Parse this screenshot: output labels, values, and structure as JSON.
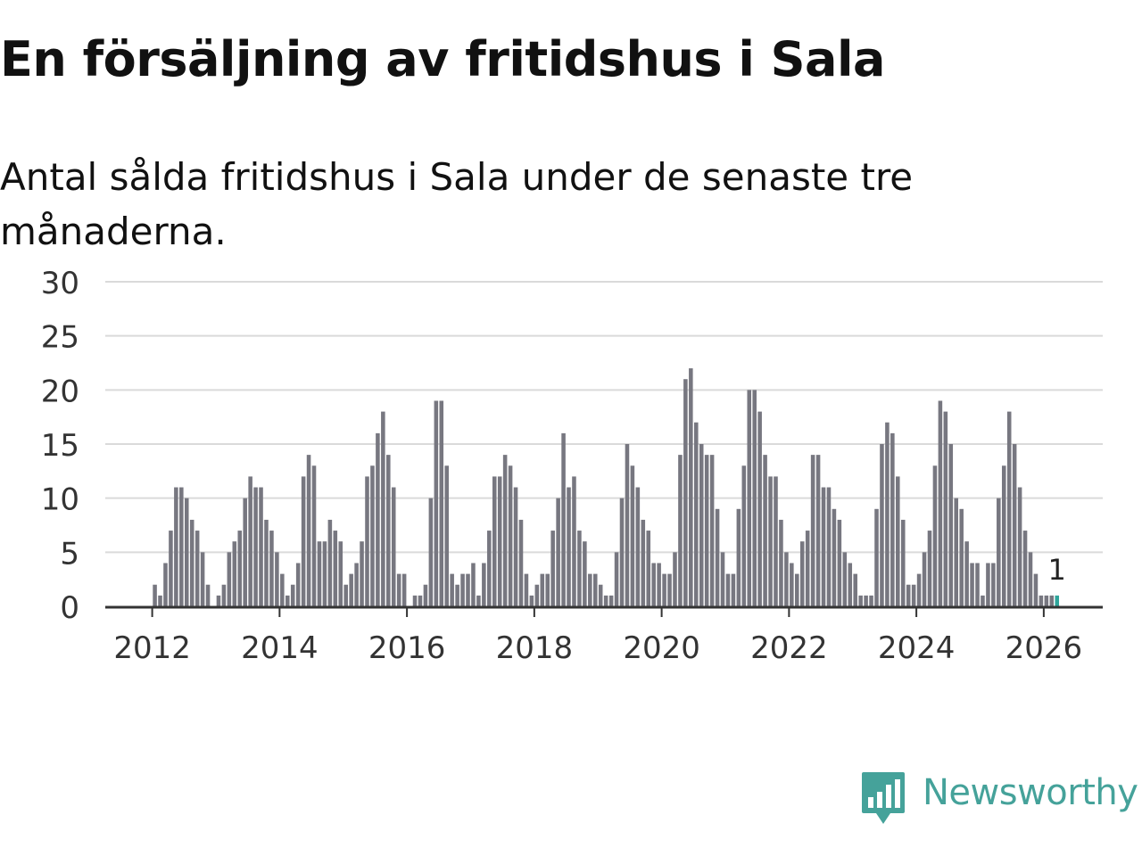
{
  "title": "En försäljning av fritidshus i Sala",
  "subtitle": "Antal sålda fritidshus i Sala under de senaste tre månaderna.",
  "brand": {
    "name": "Newsworthy",
    "icon": "bar-chart-speech-bubble-icon",
    "color": "#45a29a"
  },
  "chart_data": {
    "type": "bar",
    "title": "En försäljning av fritidshus i Sala",
    "subtitle": "Antal sålda fritidshus i Sala under de senaste tre månaderna.",
    "frequency": "monthly",
    "start": "2011-01",
    "end": "2026-03",
    "ylim": [
      0,
      30
    ],
    "y_ticks": [
      "0",
      "5",
      "10",
      "15",
      "20",
      "25",
      "30"
    ],
    "x_ticks": [
      "2012",
      "2014",
      "2016",
      "2018",
      "2020",
      "2022",
      "2024",
      "2026"
    ],
    "grid": true,
    "bar_color": "#777780",
    "highlight_color": "#2fa59b",
    "highlight_label": "1",
    "series": [
      {
        "values": [
          0,
          0,
          0,
          0,
          0,
          0,
          0,
          0,
          0,
          0,
          0,
          0,
          2,
          1,
          4,
          7,
          11,
          11,
          10,
          8,
          7,
          5,
          2,
          0,
          1,
          2,
          5,
          6,
          7,
          10,
          12,
          11,
          11,
          8,
          7,
          5,
          3,
          1,
          2,
          4,
          12,
          14,
          13,
          6,
          6,
          8,
          7,
          6,
          2,
          3,
          4,
          6,
          12,
          13,
          16,
          18,
          14,
          11,
          3,
          3,
          0,
          1,
          1,
          2,
          10,
          19,
          19,
          13,
          3,
          2,
          3,
          3,
          4,
          1,
          4,
          7,
          12,
          12,
          14,
          13,
          11,
          8,
          3,
          1,
          2,
          3,
          3,
          7,
          10,
          16,
          11,
          12,
          7,
          6,
          3,
          3,
          2,
          1,
          1,
          5,
          10,
          15,
          13,
          11,
          8,
          7,
          4,
          4,
          3,
          3,
          5,
          14,
          21,
          22,
          17,
          15,
          14,
          14,
          9,
          5,
          3,
          3,
          9,
          13,
          20,
          20,
          18,
          14,
          12,
          12,
          8,
          5,
          4,
          3,
          6,
          7,
          14,
          14,
          11,
          11,
          9,
          8,
          5,
          4,
          3,
          1,
          1,
          1,
          9,
          15,
          17,
          16,
          12,
          8,
          2,
          2,
          3,
          5,
          7,
          13,
          19,
          18,
          15,
          10,
          9,
          6,
          4,
          4,
          1,
          4,
          4,
          10,
          13,
          18,
          15,
          11,
          7,
          5,
          3,
          1,
          1,
          1,
          1
        ]
      }
    ]
  }
}
